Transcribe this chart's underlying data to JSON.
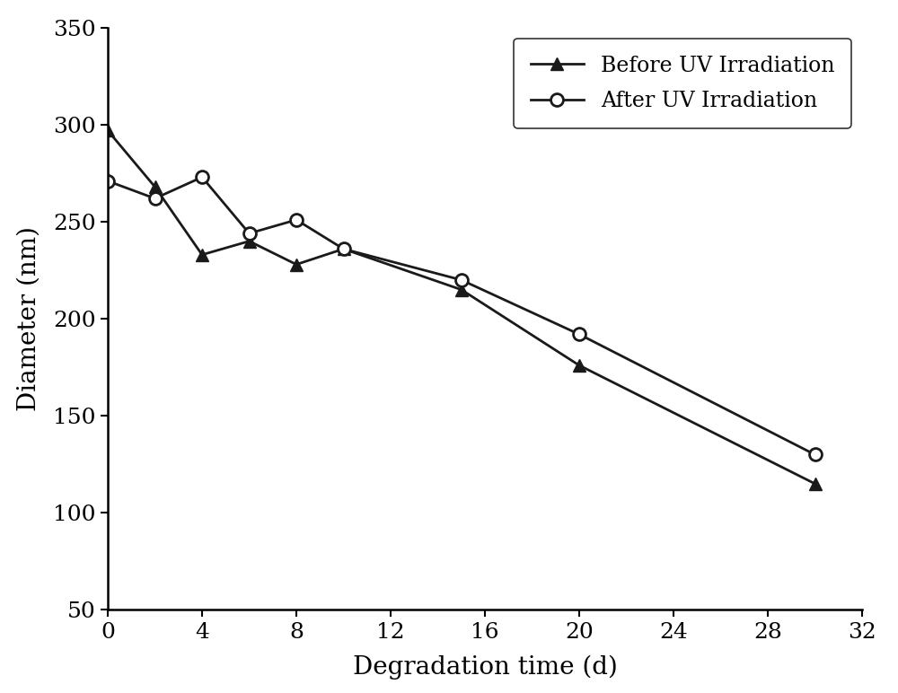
{
  "before_uv_x": [
    0,
    2,
    4,
    6,
    8,
    10,
    15,
    20,
    30
  ],
  "before_uv_y": [
    297,
    268,
    233,
    240,
    228,
    236,
    215,
    176,
    115
  ],
  "after_uv_x": [
    0,
    2,
    4,
    6,
    8,
    10,
    15,
    20,
    30
  ],
  "after_uv_y": [
    271,
    262,
    273,
    244,
    251,
    236,
    220,
    192,
    130
  ],
  "xlabel": "Degradation time (d)",
  "ylabel": "Diameter (nm)",
  "legend_before": "Before UV Irradiation",
  "legend_after": "After UV Irradiation",
  "xlim": [
    0,
    32
  ],
  "ylim": [
    50,
    350
  ],
  "xticks": [
    0,
    4,
    8,
    12,
    16,
    20,
    24,
    28,
    32
  ],
  "yticks": [
    50,
    100,
    150,
    200,
    250,
    300,
    350
  ],
  "line_color": "#1a1a1a",
  "bg_color": "#ffffff",
  "fontsize_labels": 20,
  "fontsize_ticks": 18,
  "fontsize_legend": 17,
  "marker_size": 10,
  "line_width": 2.0
}
